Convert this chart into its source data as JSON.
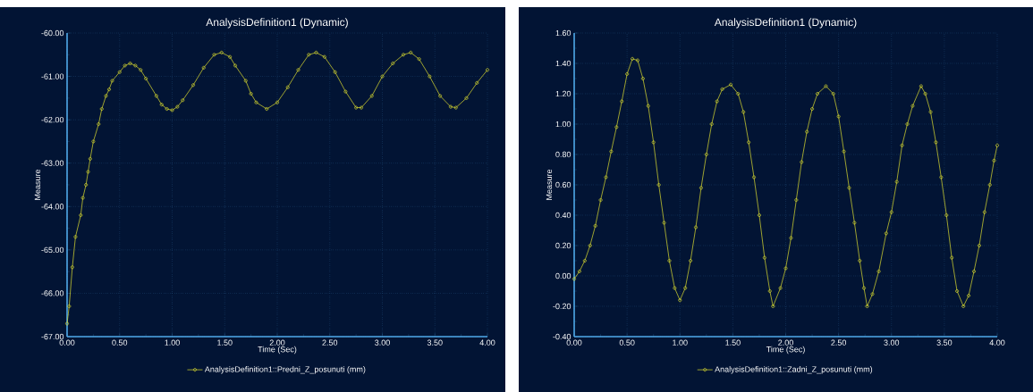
{
  "chart_data": [
    {
      "type": "line",
      "title": "AnalysisDefinition1 (Dynamic)",
      "xlabel": "Time (Sec)",
      "ylabel": "Measure",
      "x": [
        0,
        0.02,
        0.05,
        0.08,
        0.13,
        0.15,
        0.18,
        0.2,
        0.22,
        0.25,
        0.3,
        0.33,
        0.37,
        0.4,
        0.43,
        0.5,
        0.55,
        0.6,
        0.65,
        0.7,
        0.75,
        0.85,
        0.9,
        0.95,
        1.0,
        1.05,
        1.1,
        1.2,
        1.3,
        1.4,
        1.47,
        1.55,
        1.6,
        1.7,
        1.75,
        1.8,
        1.9,
        2.0,
        2.1,
        2.2,
        2.3,
        2.37,
        2.45,
        2.55,
        2.65,
        2.75,
        2.8,
        2.9,
        3.0,
        3.1,
        3.2,
        3.27,
        3.35,
        3.45,
        3.55,
        3.65,
        3.7,
        3.8,
        3.9,
        4.0
      ],
      "series": [
        {
          "name": "AnalysisDefinition1::Predni_Z_posunuti (mm)",
          "color": "#e0e030",
          "values": [
            -66.7,
            -66.3,
            -65.4,
            -64.7,
            -64.2,
            -63.8,
            -63.5,
            -63.2,
            -62.9,
            -62.5,
            -62.1,
            -61.75,
            -61.45,
            -61.3,
            -61.1,
            -60.9,
            -60.75,
            -60.7,
            -60.75,
            -60.85,
            -61.05,
            -61.45,
            -61.65,
            -61.75,
            -61.78,
            -61.7,
            -61.55,
            -61.2,
            -60.8,
            -60.5,
            -60.45,
            -60.55,
            -60.75,
            -61.1,
            -61.4,
            -61.6,
            -61.75,
            -61.6,
            -61.25,
            -60.85,
            -60.5,
            -60.45,
            -60.55,
            -60.9,
            -61.35,
            -61.72,
            -61.72,
            -61.45,
            -61.0,
            -60.7,
            -60.5,
            -60.45,
            -60.6,
            -61.0,
            -61.45,
            -61.7,
            -61.72,
            -61.5,
            -61.15,
            -60.85
          ]
        }
      ],
      "xlim": [
        0,
        4
      ],
      "xticks": [
        {
          "value": 0,
          "label": "0.00"
        },
        {
          "value": 0.5,
          "label": "0.50"
        },
        {
          "value": 1,
          "label": "1.00"
        },
        {
          "value": 1.5,
          "label": "1.50"
        },
        {
          "value": 2,
          "label": "2.00"
        },
        {
          "value": 2.5,
          "label": "2.50"
        },
        {
          "value": 3,
          "label": "3.00"
        },
        {
          "value": 3.5,
          "label": "3.50"
        },
        {
          "value": 4,
          "label": "4.00"
        }
      ],
      "ylim": [
        -67,
        -60
      ],
      "yticks": [
        {
          "value": -67,
          "label": "-67.00"
        },
        {
          "value": -66,
          "label": "-66.00"
        },
        {
          "value": -65,
          "label": "-65.00"
        },
        {
          "value": -64,
          "label": "-64.00"
        },
        {
          "value": -63,
          "label": "-63.00"
        },
        {
          "value": -62,
          "label": "-62.00"
        },
        {
          "value": -61,
          "label": "-61.00"
        },
        {
          "value": -60,
          "label": "-60.00"
        }
      ],
      "grid": true,
      "legend": "bottom",
      "marker": "circle",
      "line_style": "solid"
    },
    {
      "type": "line",
      "title": "AnalysisDefinition1 (Dynamic)",
      "xlabel": "Time (Sec)",
      "ylabel": "Measure",
      "x": [
        0,
        0.05,
        0.1,
        0.15,
        0.2,
        0.25,
        0.3,
        0.35,
        0.4,
        0.45,
        0.5,
        0.55,
        0.6,
        0.65,
        0.7,
        0.75,
        0.8,
        0.85,
        0.9,
        0.95,
        1.0,
        1.05,
        1.1,
        1.15,
        1.2,
        1.25,
        1.3,
        1.35,
        1.4,
        1.48,
        1.55,
        1.6,
        1.65,
        1.7,
        1.75,
        1.8,
        1.85,
        1.88,
        1.95,
        2.0,
        2.05,
        2.1,
        2.15,
        2.2,
        2.25,
        2.3,
        2.38,
        2.45,
        2.5,
        2.55,
        2.6,
        2.65,
        2.7,
        2.74,
        2.77,
        2.82,
        2.88,
        2.95,
        3.0,
        3.05,
        3.1,
        3.15,
        3.2,
        3.28,
        3.32,
        3.37,
        3.42,
        3.47,
        3.52,
        3.57,
        3.62,
        3.68,
        3.73,
        3.78,
        3.83,
        3.88,
        3.93,
        3.97,
        4.0
      ],
      "series": [
        {
          "name": "AnalysisDefinition1::Zadni_Z_posunuti (mm)",
          "color": "#e0e030",
          "values": [
            -0.02,
            0.03,
            0.1,
            0.2,
            0.33,
            0.5,
            0.65,
            0.82,
            0.98,
            1.15,
            1.33,
            1.43,
            1.42,
            1.3,
            1.12,
            0.88,
            0.6,
            0.35,
            0.1,
            -0.08,
            -0.16,
            -0.08,
            0.1,
            0.32,
            0.58,
            0.8,
            1.0,
            1.15,
            1.23,
            1.26,
            1.2,
            1.08,
            0.88,
            0.65,
            0.4,
            0.12,
            -0.1,
            -0.2,
            -0.08,
            0.05,
            0.25,
            0.5,
            0.75,
            0.95,
            1.1,
            1.2,
            1.25,
            1.2,
            1.05,
            0.82,
            0.58,
            0.35,
            0.1,
            -0.08,
            -0.2,
            -0.12,
            0.03,
            0.28,
            0.42,
            0.62,
            0.86,
            1.0,
            1.12,
            1.25,
            1.2,
            1.08,
            0.88,
            0.65,
            0.4,
            0.12,
            -0.1,
            -0.2,
            -0.13,
            0.03,
            0.2,
            0.42,
            0.6,
            0.76,
            0.86
          ]
        }
      ],
      "xlim": [
        0,
        4
      ],
      "xticks": [
        {
          "value": 0,
          "label": "0.00"
        },
        {
          "value": 0.5,
          "label": "0.50"
        },
        {
          "value": 1,
          "label": "1.00"
        },
        {
          "value": 1.5,
          "label": "1.50"
        },
        {
          "value": 2,
          "label": "2.00"
        },
        {
          "value": 2.5,
          "label": "2.50"
        },
        {
          "value": 3,
          "label": "3.00"
        },
        {
          "value": 3.5,
          "label": "3.50"
        },
        {
          "value": 4,
          "label": "4.00"
        }
      ],
      "ylim": [
        -0.4,
        1.6
      ],
      "yticks": [
        {
          "value": -0.4,
          "label": "-0.40"
        },
        {
          "value": -0.2,
          "label": "-0.20"
        },
        {
          "value": 0,
          "label": "0.00"
        },
        {
          "value": 0.2,
          "label": "0.20"
        },
        {
          "value": 0.4,
          "label": "0.40"
        },
        {
          "value": 0.6,
          "label": "0.60"
        },
        {
          "value": 0.8,
          "label": "0.80"
        },
        {
          "value": 1.0,
          "label": "1.00"
        },
        {
          "value": 1.2,
          "label": "1.20"
        },
        {
          "value": 1.4,
          "label": "1.40"
        },
        {
          "value": 1.6,
          "label": "1.60"
        }
      ],
      "grid": true,
      "legend": "bottom",
      "marker": "circle",
      "line_style": "solid"
    }
  ]
}
